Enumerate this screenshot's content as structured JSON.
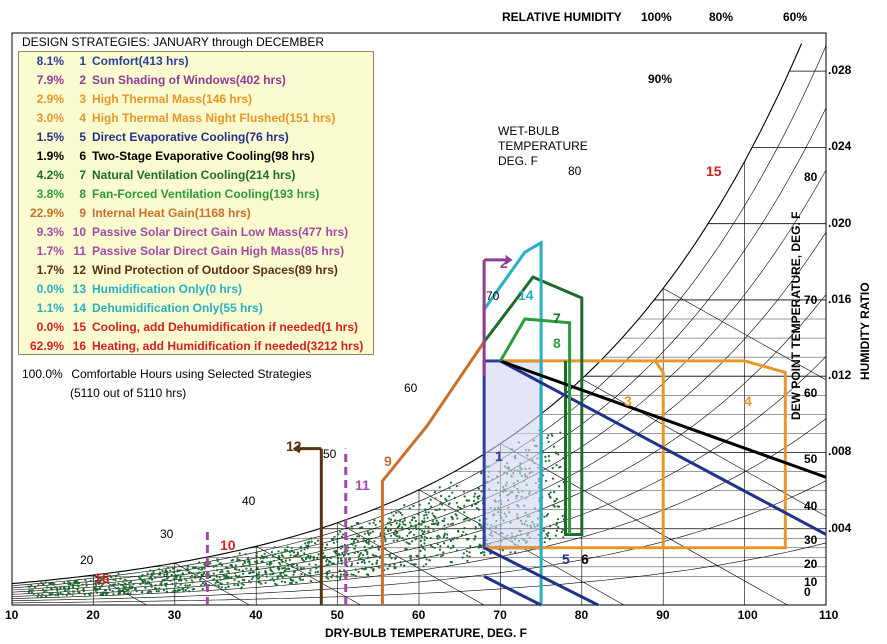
{
  "header": {
    "relative_humidity_label": "RELATIVE HUMIDITY",
    "rh_labels": [
      "100%",
      "80%",
      "60%"
    ],
    "rh_inner_label": "90%"
  },
  "legend": {
    "title": "DESIGN STRATEGIES:  JANUARY through DECEMBER",
    "rows": [
      {
        "pct": "8.1%",
        "num": "1",
        "text": "Comfort(413 hrs)",
        "color": "#2b3f9e"
      },
      {
        "pct": "7.9%",
        "num": "2",
        "text": "Sun Shading of Windows(402 hrs)",
        "color": "#8e3c94"
      },
      {
        "pct": "2.9%",
        "num": "3",
        "text": "High Thermal Mass(146 hrs)",
        "color": "#e8962a"
      },
      {
        "pct": "3.0%",
        "num": "4",
        "text": "High Thermal Mass Night Flushed(151 hrs)",
        "color": "#e8962a"
      },
      {
        "pct": "1.5%",
        "num": "5",
        "text": "Direct Evaporative Cooling(76 hrs)",
        "color": "#22318c"
      },
      {
        "pct": "1.9%",
        "num": "6",
        "text": "Two-Stage Evaporative Cooling(98 hrs)",
        "color": "#000000"
      },
      {
        "pct": "4.2%",
        "num": "7",
        "text": "Natural Ventilation Cooling(214 hrs)",
        "color": "#1f6b2e"
      },
      {
        "pct": "3.8%",
        "num": "8",
        "text": "Fan-Forced Ventilation Cooling(193 hrs)",
        "color": "#2e9a3c"
      },
      {
        "pct": "22.9%",
        "num": "9",
        "text": "Internal Heat Gain(1168 hrs)",
        "color": "#c8702e"
      },
      {
        "pct": "9.3%",
        "num": "10",
        "text": "Passive Solar Direct Gain Low Mass(477 hrs)",
        "color": "#a24aa6"
      },
      {
        "pct": "1.7%",
        "num": "11",
        "text": "Passive Solar Direct Gain High Mass(85 hrs)",
        "color": "#a24aa6"
      },
      {
        "pct": "1.7%",
        "num": "12",
        "text": "Wind Protection of Outdoor Spaces(89 hrs)",
        "color": "#5a3210"
      },
      {
        "pct": "0.0%",
        "num": "13",
        "text": "Humidification Only(0 hrs)",
        "color": "#28b0c0"
      },
      {
        "pct": "1.1%",
        "num": "14",
        "text": "Dehumidification Only(55 hrs)",
        "color": "#28b0c0"
      },
      {
        "pct": "0.0%",
        "num": "15",
        "text": "Cooling, add Dehumidification if needed(1 hrs)",
        "color": "#d42020"
      },
      {
        "pct": "62.9%",
        "num": "16",
        "text": "Heating, add Humidification if needed(3212 hrs)",
        "color": "#d42020"
      }
    ],
    "summary_pct": "100.0%",
    "summary_text": "Comfortable Hours using Selected Strategies",
    "summary_sub": "(5110 out of 5110 hrs)"
  },
  "wet_bulb": {
    "title_lines": [
      "WET-BULB",
      "TEMPERATURE",
      "DEG. F"
    ],
    "labels": [
      "20",
      "30",
      "40",
      "50",
      "60",
      "70",
      "80"
    ]
  },
  "axes": {
    "x_title": "DRY-BULB TEMPERATURE, DEG. F",
    "y_right_title": "HUMIDITY RATIO",
    "dew_point_title": "DEW POINT TEMPERATURE, DEG. F",
    "humidity_ticks": [
      ".028",
      ".024",
      ".020",
      ".016",
      ".012",
      ".008",
      ".004"
    ],
    "dew_point_ticks": [
      "80",
      "70",
      "60",
      "50",
      "40",
      "30",
      "20",
      "10",
      "0"
    ]
  },
  "zone_labels": [
    "1",
    "2",
    "3",
    "4",
    "5",
    "6",
    "7",
    "8",
    "9",
    "10",
    "11",
    "12",
    "14",
    "15",
    "16"
  ],
  "chart_data": {
    "type": "scatter",
    "title": "DESIGN STRATEGIES:  JANUARY through DECEMBER",
    "xlabel": "DRY-BULB TEMPERATURE, DEG. F",
    "ylabel": "HUMIDITY RATIO",
    "xlim": [
      10,
      110
    ],
    "ylim": [
      0,
      0.03
    ],
    "x_ticks": [
      10,
      20,
      30,
      40,
      50,
      60,
      70,
      80,
      90,
      100,
      110
    ],
    "humidity_ratio_ticks": [
      0.004,
      0.008,
      0.012,
      0.016,
      0.02,
      0.024,
      0.028
    ],
    "relative_humidity_curves": [
      10,
      20,
      30,
      40,
      50,
      60,
      70,
      80,
      90,
      100
    ],
    "total_hours": 5110,
    "comfortable_hours": 5110,
    "comfort_zone": {
      "db_min": 68,
      "db_max": 75,
      "w_min": 0.003,
      "w_max": 0.0128
    },
    "series": [
      {
        "name": "Comfort",
        "hours": 413
      },
      {
        "name": "Heating, add Humidification if needed",
        "hours": 3212
      }
    ]
  }
}
